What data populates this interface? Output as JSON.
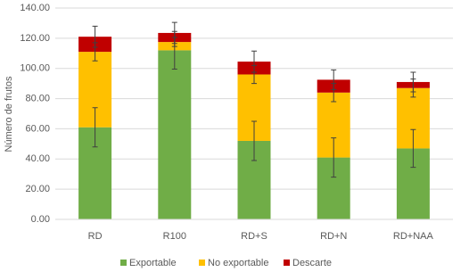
{
  "chart_data": {
    "type": "stacked_bar",
    "y_label": "Número de frutos",
    "categories": [
      "RD",
      "R100",
      "RD+S",
      "RD+N",
      "RD+NAA"
    ],
    "series": [
      {
        "name": "Exportable",
        "color": "#70ad47",
        "values": [
          61,
          112,
          52,
          41,
          47
        ],
        "errors": [
          13,
          12.5,
          13,
          13,
          12.5
        ]
      },
      {
        "name": "No exportable",
        "color": "#ffc000",
        "values": [
          50,
          5.5,
          44,
          43,
          40
        ],
        "errors": [
          6,
          3,
          6,
          6,
          6
        ]
      },
      {
        "name": "Descarte",
        "color": "#c00000",
        "values": [
          10,
          6,
          8.5,
          8.5,
          4
        ],
        "errors": [
          7,
          7,
          7,
          6.5,
          6.5
        ]
      }
    ],
    "ylim": [
      0,
      140
    ],
    "yticks": [
      {
        "value": 0,
        "label": "0.00"
      },
      {
        "value": 20,
        "label": "20.00"
      },
      {
        "value": 40,
        "label": "40.00"
      },
      {
        "value": 60,
        "label": "60.00"
      },
      {
        "value": 80,
        "label": "80.00"
      },
      {
        "value": 100,
        "label": "100.00"
      },
      {
        "value": 120,
        "label": "120.00"
      },
      {
        "value": 140,
        "label": "140.00"
      }
    ],
    "grid": true,
    "legend": "bottom"
  }
}
